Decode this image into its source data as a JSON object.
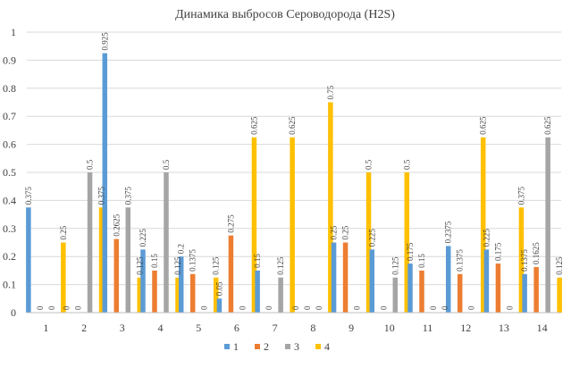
{
  "chart_data": {
    "type": "bar",
    "title": "Динамика выбросов Сероводорода (H2S)",
    "xlabel": "",
    "ylabel": "",
    "ylim": [
      0,
      1
    ],
    "yticks": [
      "0",
      "0.1",
      "0.2",
      "0.3",
      "0.4",
      "0.5",
      "0.6",
      "0.7",
      "0.8",
      "0.9",
      "1"
    ],
    "grid": true,
    "legend_position": "bottom",
    "categories": [
      "1",
      "2",
      "3",
      "4",
      "5",
      "6",
      "7",
      "8",
      "9",
      "10",
      "11",
      "12",
      "13",
      "14"
    ],
    "series": [
      {
        "name": "1",
        "color": "#5b9bd5",
        "values": [
          0.375,
          0,
          0.925,
          0.225,
          0.2,
          0.05,
          0.15,
          0,
          0.25,
          0.225,
          0.175,
          0.2375,
          0.225,
          0.1375
        ],
        "labels": [
          "0.375",
          "0",
          "0.925",
          "0.225",
          "0.2",
          "0.05",
          "0.15",
          "0",
          "0.25",
          "0.225",
          "0.175",
          "0.2375",
          "0.225",
          "0.1375"
        ]
      },
      {
        "name": "2",
        "color": "#ed7d31",
        "values": [
          0,
          0,
          0.2625,
          0.15,
          0.1375,
          0.275,
          0,
          0,
          0.25,
          0,
          0.15,
          0.1375,
          0.175,
          0.1625
        ],
        "labels": [
          "0",
          "0",
          "0.2625",
          "0.15",
          "0.1375",
          "0.275",
          "0",
          "0",
          "0.25",
          "0",
          "0.15",
          "0.1375",
          "0.175",
          "0.1625"
        ]
      },
      {
        "name": "3",
        "color": "#a5a5a5",
        "values": [
          0,
          0.5,
          0.375,
          0.5,
          0,
          0,
          0.125,
          0,
          0,
          0.125,
          0,
          0,
          0,
          0.625
        ],
        "labels": [
          "0",
          "0.5",
          "0.375",
          "0.5",
          "0",
          "0",
          "0.125",
          "0",
          "0",
          "0.125",
          "0",
          "0",
          "0",
          "0.625"
        ]
      },
      {
        "name": "4",
        "color": "#ffc000",
        "values": [
          0.25,
          0.375,
          0.125,
          0.125,
          0.125,
          0.625,
          0.625,
          0.75,
          0.5,
          0.5,
          0,
          0.625,
          0.375,
          0.125
        ],
        "labels": [
          "0.25",
          "0.375",
          "0.125",
          "0.125",
          "0.125",
          "0.625",
          "0.625",
          "0.75",
          "0.5",
          "0.5",
          "0",
          "0.625",
          "0.375",
          "0.125"
        ]
      }
    ]
  }
}
